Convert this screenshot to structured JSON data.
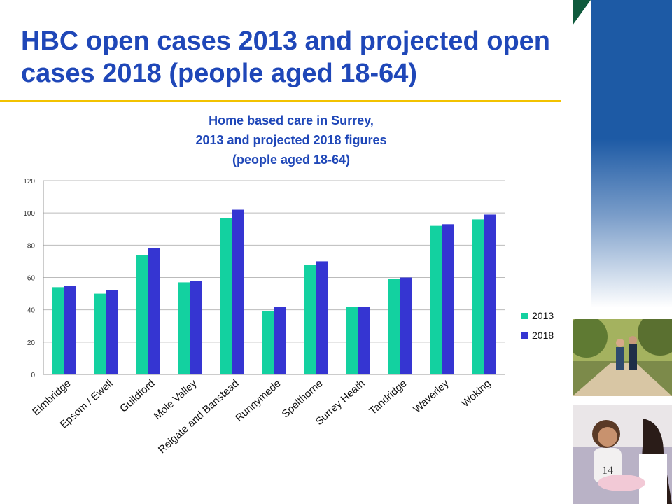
{
  "slide": {
    "title": "HBC open cases 2013 and projected open cases 2018 (people aged 18-64)",
    "page_number": "14"
  },
  "colors": {
    "title": "#1f47b8",
    "series_2013": "#13d1a0",
    "series_2018": "#3535d2",
    "rule": "#f2c200"
  },
  "chart_data": {
    "type": "bar",
    "title": "Home based care in Surrey,\n2013 and projected 2018 figures\n(people aged 18-64)",
    "title_lines": [
      "Home based care in Surrey,",
      "2013 and projected 2018 figures",
      "(people aged 18-64)"
    ],
    "categories": [
      "Elmbridge",
      "Epsom / Ewell",
      "Guildford",
      "Mole Valley",
      "Reigate and Banstead",
      "Runnymede",
      "Spelthorne",
      "Surrey Heath",
      "Tandridge",
      "Waverley",
      "Woking"
    ],
    "series": [
      {
        "name": "2013",
        "values": [
          54,
          50,
          74,
          57,
          97,
          39,
          68,
          42,
          59,
          92,
          96
        ]
      },
      {
        "name": "2018",
        "values": [
          55,
          52,
          78,
          58,
          102,
          42,
          70,
          42,
          60,
          93,
          99
        ]
      }
    ],
    "ylim": [
      0,
      120
    ],
    "yticks": [
      0,
      20,
      40,
      60,
      80,
      100,
      120
    ],
    "xlabel": "",
    "ylabel": "",
    "grid": true,
    "legend": "right"
  }
}
